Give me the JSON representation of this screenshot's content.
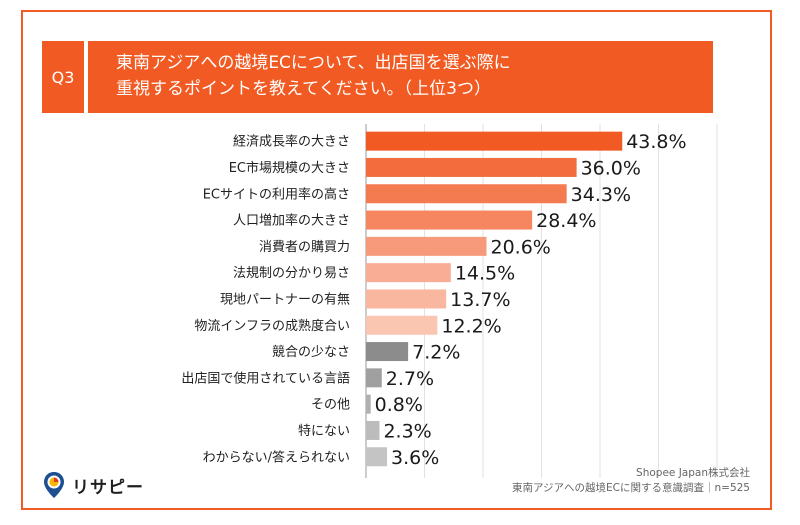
{
  "question": {
    "badge": "Q3",
    "line1": "東南アジアへの越境ECについて、出店国を選ぶ際に",
    "line2": "重視するポイントを教えてください。（上位3つ）"
  },
  "chart_data": {
    "type": "bar",
    "orientation": "horizontal",
    "categories": [
      "経済成長率の大きさ",
      "EC市場規模の大きさ",
      "ECサイトの利用率の高さ",
      "人口増加率の大きさ",
      "消費者の購買力",
      "法規制の分かり易さ",
      "現地パートナーの有無",
      "物流インフラの成熟度合い",
      "競合の少なさ",
      "出店国で使用されている言語",
      "その他",
      "特にない",
      "わからない/答えられない"
    ],
    "values": [
      43.8,
      36.0,
      34.3,
      28.4,
      20.6,
      14.5,
      13.7,
      12.2,
      7.2,
      2.7,
      0.8,
      2.3,
      3.6
    ],
    "value_labels": [
      "43.8%",
      "36.0%",
      "34.3%",
      "28.4%",
      "20.6%",
      "14.5%",
      "13.7%",
      "12.2%",
      "7.2%",
      "2.7%",
      "0.8%",
      "2.3%",
      "3.6%"
    ],
    "bar_colors": [
      "#f15a22",
      "#f36c3e",
      "#f47a4f",
      "#f58660",
      "#f69a7b",
      "#f8ad94",
      "#f9b79f",
      "#fac6b2",
      "#8c8c8c",
      "#a0a0a0",
      "#b0b0b0",
      "#bcbcbc",
      "#c4c4c4"
    ],
    "xlim": [
      0,
      60
    ],
    "grid": true
  },
  "logo": {
    "text": "リサピー"
  },
  "source": {
    "line1": "Shopee Japan株式会社",
    "line2": "東南アジアへの越境ECに関する意識調査｜n=525"
  }
}
